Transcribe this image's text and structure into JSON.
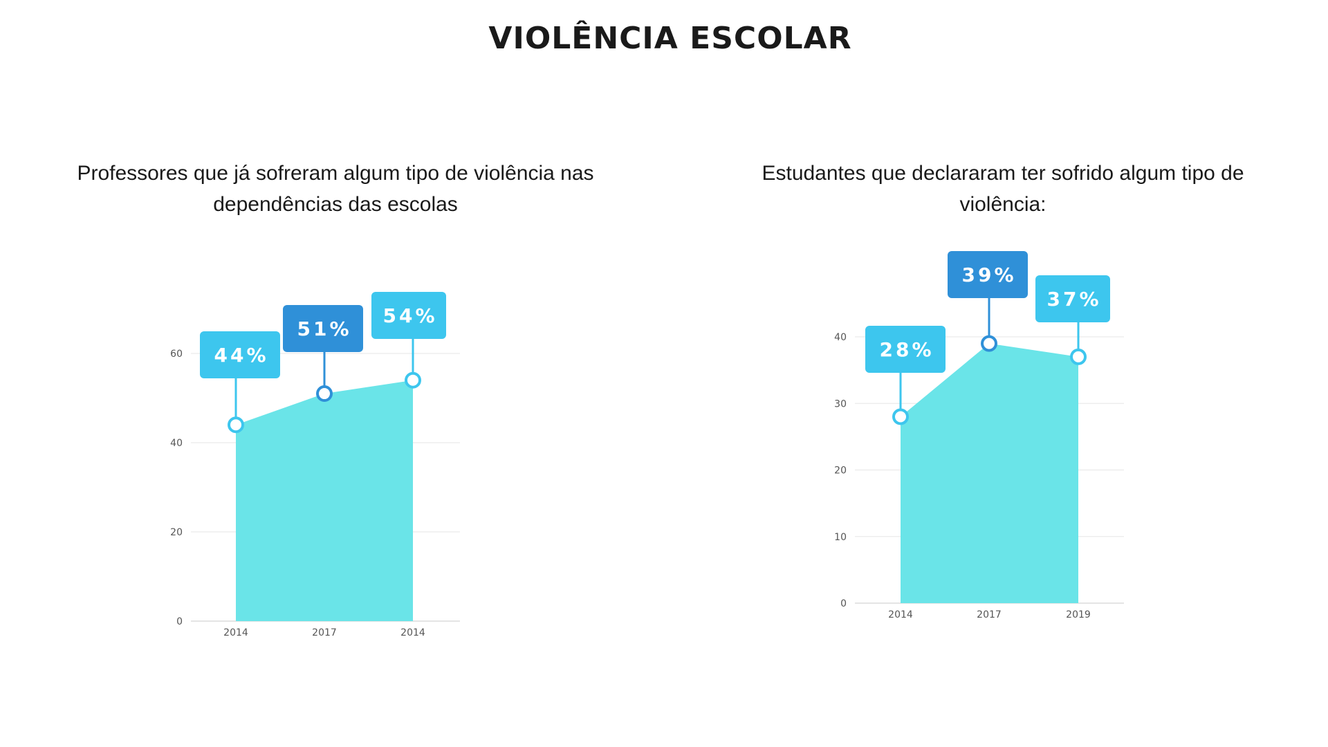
{
  "page": {
    "title": "VIOLÊNCIA ESCOLAR"
  },
  "colors": {
    "area_fill": "#6ae4e8",
    "light_blue": "#3dc6ee",
    "dark_blue": "#2f90d8",
    "grid": "#e6e6e6",
    "axis": "#c8c8c8"
  },
  "chart_data": [
    {
      "type": "area",
      "title": "Professores que já sofreram algum tipo de violência nas dependências das escolas",
      "categories": [
        "2014",
        "2017",
        "2014"
      ],
      "values": [
        44,
        51,
        54
      ],
      "data_labels": [
        "44%",
        "51%",
        "54%"
      ],
      "ylim": [
        0,
        70
      ],
      "yticks": [
        0,
        20,
        40,
        60
      ],
      "ytick_labels": [
        "0",
        "20",
        "40",
        "60"
      ],
      "grid": true,
      "highlighted_index": 1,
      "series": [
        {
          "values": [
            44,
            51,
            54
          ]
        }
      ]
    },
    {
      "type": "area",
      "title": "Estudantes que declararam ter sofrido algum tipo de violência:",
      "categories": [
        "2014",
        "2017",
        "2019"
      ],
      "values": [
        28,
        39,
        37
      ],
      "data_labels": [
        "28%",
        "39%",
        "37%"
      ],
      "ylim": [
        0,
        40
      ],
      "yticks": [
        0,
        10,
        20,
        30,
        40
      ],
      "ytick_labels": [
        "0",
        "10",
        "20",
        "30",
        "40"
      ],
      "grid": true,
      "highlighted_index": 1,
      "series": [
        {
          "values": [
            28,
            39,
            37
          ]
        }
      ]
    }
  ]
}
